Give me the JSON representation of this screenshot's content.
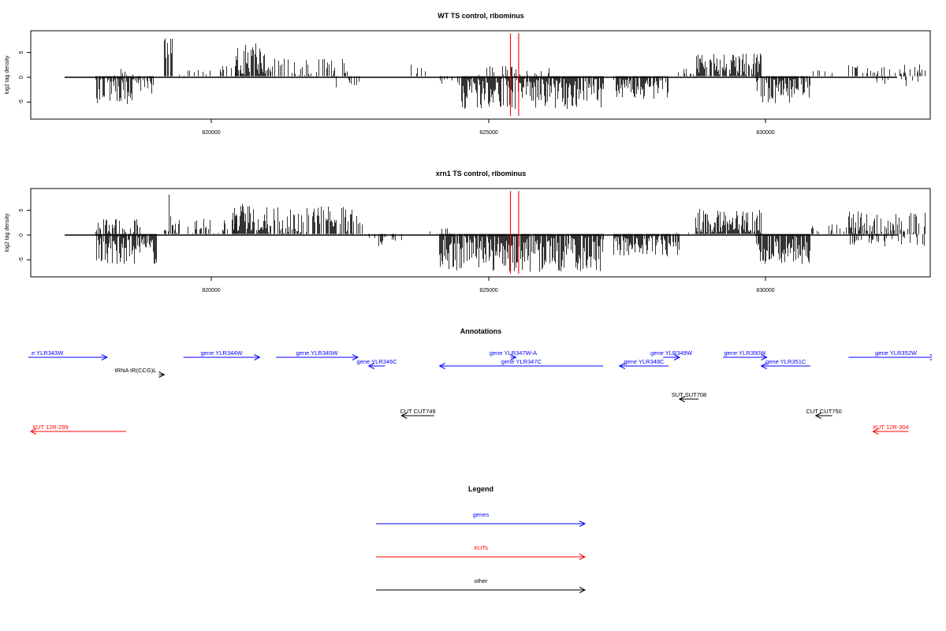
{
  "chart_data": [
    {
      "type": "bar",
      "title": "WT TS control, ribominus",
      "ylabel": "log2 tag density",
      "xlim": [
        816000,
        832500
      ],
      "ylim": [
        -8.5,
        9
      ],
      "x_ticks": [
        "820000",
        "825000",
        "830000"
      ],
      "y_ticks": [
        "-5",
        "0",
        "5"
      ],
      "baseline": 0,
      "red_markers_x": [
        824800,
        824950
      ],
      "red_marker_top": 8.5,
      "coverage_regions": [
        {
          "start": 817200,
          "end": 818250,
          "min": -5.5,
          "max": 0,
          "density": 0.9
        },
        {
          "start": 817500,
          "end": 817900,
          "min": 0,
          "max": 1.5,
          "density": 0.25
        },
        {
          "start": 818450,
          "end": 818600,
          "min": 0,
          "max": 8.5,
          "density": 0.7
        },
        {
          "start": 818600,
          "end": 819900,
          "min": 0,
          "max": 2,
          "density": 0.3
        },
        {
          "start": 819750,
          "end": 820300,
          "min": 0,
          "max": 6.5,
          "density": 0.9
        },
        {
          "start": 820300,
          "end": 821800,
          "min": 0,
          "max": 3.5,
          "density": 0.4
        },
        {
          "start": 821500,
          "end": 822300,
          "min": -2.5,
          "max": 0,
          "density": 0.2
        },
        {
          "start": 822900,
          "end": 823500,
          "min": 0,
          "max": 2.5,
          "density": 0.2
        },
        {
          "start": 823500,
          "end": 823900,
          "min": -2,
          "max": 0,
          "density": 0.4
        },
        {
          "start": 823900,
          "end": 826500,
          "min": -6.5,
          "max": 0,
          "density": 1
        },
        {
          "start": 824200,
          "end": 825600,
          "min": 0,
          "max": 2,
          "density": 0.2
        },
        {
          "start": 826700,
          "end": 827700,
          "min": -4.5,
          "max": 0,
          "density": 0.9
        },
        {
          "start": 827800,
          "end": 828200,
          "min": 0,
          "max": 1.5,
          "density": 0.2
        },
        {
          "start": 828200,
          "end": 829400,
          "min": 0,
          "max": 4.5,
          "density": 0.9
        },
        {
          "start": 829300,
          "end": 830300,
          "min": -5.5,
          "max": 0,
          "density": 0.9
        },
        {
          "start": 830300,
          "end": 831000,
          "min": 0,
          "max": 1.5,
          "density": 0.15
        },
        {
          "start": 831000,
          "end": 832400,
          "min": 0,
          "max": 2.5,
          "density": 0.35
        },
        {
          "start": 831500,
          "end": 832300,
          "min": -2,
          "max": 0,
          "density": 0.2
        }
      ]
    },
    {
      "type": "bar",
      "title": "xrn1 TS control, ribominus",
      "ylabel": "log2 tag density",
      "xlim": [
        816000,
        832500
      ],
      "ylim": [
        -8.5,
        9
      ],
      "x_ticks": [
        "820000",
        "825000",
        "830000"
      ],
      "y_ticks": [
        "-5",
        "0",
        "5"
      ],
      "baseline": 0,
      "red_markers_x": [
        824800,
        824950
      ],
      "red_marker_top": 8.5,
      "coverage_regions": [
        {
          "start": 817200,
          "end": 818300,
          "min": -6,
          "max": 0,
          "density": 1
        },
        {
          "start": 817200,
          "end": 818000,
          "min": 0,
          "max": 3,
          "density": 0.5
        },
        {
          "start": 818450,
          "end": 818600,
          "min": 0,
          "max": 8.5,
          "density": 0.7
        },
        {
          "start": 818600,
          "end": 819800,
          "min": 0,
          "max": 3,
          "density": 0.35
        },
        {
          "start": 819700,
          "end": 820400,
          "min": 0,
          "max": 6,
          "density": 1
        },
        {
          "start": 820400,
          "end": 822100,
          "min": 0,
          "max": 5.5,
          "density": 0.6
        },
        {
          "start": 822200,
          "end": 822800,
          "min": -2.5,
          "max": 0,
          "density": 0.4
        },
        {
          "start": 823300,
          "end": 823700,
          "min": 0,
          "max": 1.5,
          "density": 0.2
        },
        {
          "start": 823500,
          "end": 826500,
          "min": -7.5,
          "max": 0,
          "density": 1
        },
        {
          "start": 826700,
          "end": 827900,
          "min": -4.5,
          "max": 0,
          "density": 0.9
        },
        {
          "start": 827800,
          "end": 828200,
          "min": 0,
          "max": 1.5,
          "density": 0.2
        },
        {
          "start": 828200,
          "end": 829400,
          "min": 0,
          "max": 5,
          "density": 1
        },
        {
          "start": 829300,
          "end": 830300,
          "min": -6,
          "max": 0,
          "density": 1
        },
        {
          "start": 830300,
          "end": 831000,
          "min": 0,
          "max": 2,
          "density": 0.2
        },
        {
          "start": 831000,
          "end": 832400,
          "min": 0,
          "max": 4.5,
          "density": 0.6
        },
        {
          "start": 831000,
          "end": 832400,
          "min": -2.5,
          "max": 0,
          "density": 0.5
        }
      ]
    },
    {
      "type": "annotation_track",
      "title": "Annotations",
      "xlim": [
        816000,
        832500
      ],
      "features": [
        {
          "label": "e YLR343W",
          "start": 815600,
          "end": 817400,
          "strand": "+",
          "row": 0,
          "color": "#0000ff"
        },
        {
          "label": "gene YLR344W",
          "start": 818800,
          "end": 820200,
          "strand": "+",
          "row": 0,
          "color": "#0000ff"
        },
        {
          "label": "gene YLR345W",
          "start": 820500,
          "end": 822000,
          "strand": "+",
          "row": 0,
          "color": "#0000ff"
        },
        {
          "label": "gene YLR346C",
          "start": 822200,
          "end": 822500,
          "strand": "-",
          "row": 1,
          "color": "#0000ff"
        },
        {
          "label": "gene YLR347W-A",
          "start": 824800,
          "end": 824900,
          "strand": "+",
          "row": 0,
          "color": "#0000ff"
        },
        {
          "label": "gene YLR347C",
          "start": 823500,
          "end": 826500,
          "strand": "-",
          "row": 1,
          "color": "#0000ff"
        },
        {
          "label": "gene YLR349W",
          "start": 827600,
          "end": 827900,
          "strand": "+",
          "row": 0,
          "color": "#0000ff"
        },
        {
          "label": "gene YLR348C",
          "start": 826800,
          "end": 827700,
          "strand": "-",
          "row": 1,
          "color": "#0000ff"
        },
        {
          "label": "gene YLR350W",
          "start": 828700,
          "end": 829500,
          "strand": "+",
          "row": 0,
          "color": "#0000ff"
        },
        {
          "label": "gene YLR351C",
          "start": 829400,
          "end": 830300,
          "strand": "-",
          "row": 1,
          "color": "#0000ff"
        },
        {
          "label": "gene YLR352W",
          "start": 831000,
          "end": 832600,
          "strand": "+",
          "row": 0,
          "color": "#0000ff"
        },
        {
          "label": "tRNA tR(CCG)L",
          "start": 818350,
          "end": 818450,
          "strand": "+",
          "row": 2,
          "color": "#000000"
        },
        {
          "label": "SUT SUT708",
          "start": 827900,
          "end": 828250,
          "strand": "-",
          "row": 3,
          "color": "#000000"
        },
        {
          "label": "CUT CUT749",
          "start": 822800,
          "end": 823400,
          "strand": "-",
          "row": 4,
          "color": "#000000"
        },
        {
          "label": "CUT CUT750",
          "start": 830400,
          "end": 830700,
          "strand": "-",
          "row": 4,
          "color": "#000000"
        },
        {
          "label": "XUT 12R-299",
          "start": 816000,
          "end": 817750,
          "strand": "-",
          "row": 5,
          "color": "#ff0000"
        },
        {
          "label": "XUT 12R-304",
          "start": 831450,
          "end": 832100,
          "strand": "-",
          "row": 5,
          "color": "#ff0000"
        }
      ]
    },
    {
      "type": "legend",
      "title": "Legend",
      "entries": [
        {
          "label": "genes",
          "color": "#0000ff"
        },
        {
          "label": "XUTs",
          "color": "#ff0000"
        },
        {
          "label": "other",
          "color": "#000000"
        }
      ]
    }
  ]
}
